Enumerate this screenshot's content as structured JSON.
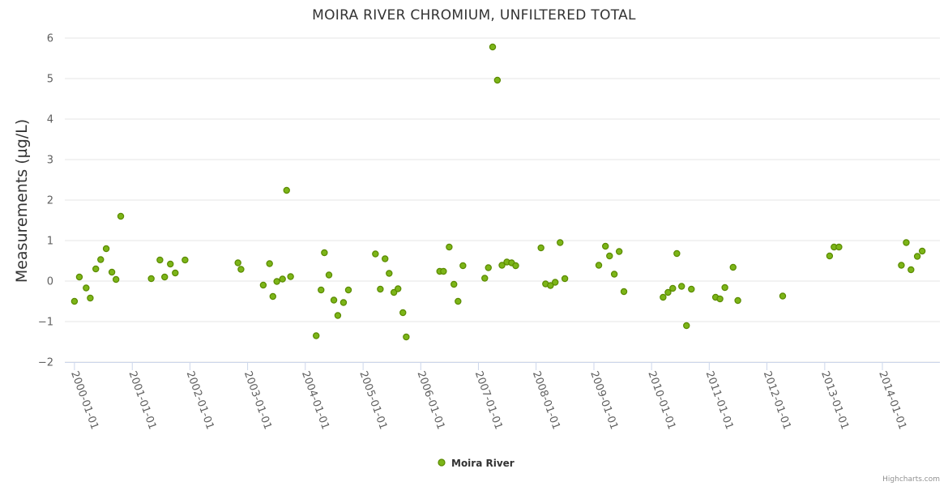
{
  "chart_data": {
    "type": "scatter",
    "title": "MOIRA RIVER CHROMIUM, UNFILTERED TOTAL",
    "ylabel": "Measurements (µg/L)",
    "xlabel": "",
    "ylim": [
      -2,
      6
    ],
    "xlim": [
      "1999-11-01",
      "2014-12-31"
    ],
    "yticks": [
      "−2",
      "−1",
      "0",
      "1",
      "2",
      "3",
      "4",
      "5",
      "6"
    ],
    "ytick_values": [
      -2,
      -1,
      0,
      1,
      2,
      3,
      4,
      5,
      6
    ],
    "xticks": [
      "2000-01-01",
      "2001-01-01",
      "2002-01-01",
      "2003-01-01",
      "2004-01-01",
      "2005-01-01",
      "2006-01-01",
      "2007-01-01",
      "2008-01-01",
      "2009-01-01",
      "2010-01-01",
      "2011-01-01",
      "2012-01-01",
      "2013-01-01",
      "2014-01-01"
    ],
    "grid": true,
    "legend_position": "bottom-center",
    "marker_fill": "#7cb518",
    "marker_stroke": "#5a8a00",
    "credits": "Highcharts.com",
    "series": [
      {
        "name": "Moira River",
        "points": [
          [
            "2000-01-01",
            -0.5
          ],
          [
            "2000-02-01",
            0.1
          ],
          [
            "2000-03-15",
            -0.17
          ],
          [
            "2000-04-10",
            -0.42
          ],
          [
            "2000-05-15",
            0.3
          ],
          [
            "2000-06-15",
            0.53
          ],
          [
            "2000-07-20",
            0.8
          ],
          [
            "2000-08-25",
            0.22
          ],
          [
            "2000-09-20",
            0.04
          ],
          [
            "2000-10-20",
            1.6
          ],
          [
            "2001-05-01",
            0.06
          ],
          [
            "2001-06-25",
            0.52
          ],
          [
            "2001-07-25",
            0.1
          ],
          [
            "2001-08-30",
            0.42
          ],
          [
            "2001-09-30",
            0.2
          ],
          [
            "2001-12-01",
            0.52
          ],
          [
            "2002-11-01",
            0.45
          ],
          [
            "2002-11-20",
            0.29
          ],
          [
            "2003-04-10",
            -0.1
          ],
          [
            "2003-05-20",
            0.43
          ],
          [
            "2003-06-10",
            -0.38
          ],
          [
            "2003-07-05",
            -0.01
          ],
          [
            "2003-08-10",
            0.05
          ],
          [
            "2003-09-05",
            2.24
          ],
          [
            "2003-09-30",
            0.11
          ],
          [
            "2004-03-10",
            -1.35
          ],
          [
            "2004-04-10",
            -0.22
          ],
          [
            "2004-05-01",
            0.7
          ],
          [
            "2004-05-30",
            0.15
          ],
          [
            "2004-06-30",
            -0.47
          ],
          [
            "2004-07-25",
            -0.85
          ],
          [
            "2004-08-30",
            -0.53
          ],
          [
            "2004-09-30",
            -0.22
          ],
          [
            "2005-03-20",
            0.67
          ],
          [
            "2005-04-20",
            -0.2
          ],
          [
            "2005-05-20",
            0.55
          ],
          [
            "2005-06-15",
            0.19
          ],
          [
            "2005-07-15",
            -0.28
          ],
          [
            "2005-08-10",
            -0.19
          ],
          [
            "2005-09-10",
            -0.78
          ],
          [
            "2005-10-01",
            -1.38
          ],
          [
            "2006-05-01",
            0.24
          ],
          [
            "2006-05-25",
            0.24
          ],
          [
            "2006-06-30",
            0.84
          ],
          [
            "2006-07-30",
            -0.08
          ],
          [
            "2006-08-25",
            -0.5
          ],
          [
            "2006-09-25",
            0.38
          ],
          [
            "2007-02-10",
            0.07
          ],
          [
            "2007-03-05",
            0.33
          ],
          [
            "2007-04-01",
            5.78
          ],
          [
            "2007-05-01",
            4.96
          ],
          [
            "2007-05-30",
            0.39
          ],
          [
            "2007-06-30",
            0.47
          ],
          [
            "2007-07-30",
            0.45
          ],
          [
            "2007-08-25",
            0.38
          ],
          [
            "2008-02-01",
            0.82
          ],
          [
            "2008-03-01",
            -0.07
          ],
          [
            "2008-04-01",
            -0.11
          ],
          [
            "2008-05-01",
            -0.03
          ],
          [
            "2008-06-01",
            0.95
          ],
          [
            "2008-07-01",
            0.06
          ],
          [
            "2009-02-01",
            0.39
          ],
          [
            "2009-03-15",
            0.86
          ],
          [
            "2009-04-10",
            0.62
          ],
          [
            "2009-05-10",
            0.17
          ],
          [
            "2009-06-10",
            0.73
          ],
          [
            "2009-07-10",
            -0.26
          ],
          [
            "2010-03-15",
            -0.4
          ],
          [
            "2010-04-15",
            -0.28
          ],
          [
            "2010-05-15",
            -0.18
          ],
          [
            "2010-06-10",
            0.68
          ],
          [
            "2010-07-10",
            -0.13
          ],
          [
            "2010-08-10",
            -1.1
          ],
          [
            "2010-09-10",
            -0.2
          ],
          [
            "2011-02-10",
            -0.4
          ],
          [
            "2011-03-10",
            -0.44
          ],
          [
            "2011-04-10",
            -0.16
          ],
          [
            "2011-06-01",
            0.34
          ],
          [
            "2011-07-01",
            -0.48
          ],
          [
            "2012-04-10",
            -0.37
          ],
          [
            "2013-02-01",
            0.62
          ],
          [
            "2013-03-01",
            0.84
          ],
          [
            "2013-04-01",
            0.84
          ],
          [
            "2014-05-01",
            0.39
          ],
          [
            "2014-06-01",
            0.95
          ],
          [
            "2014-07-01",
            0.28
          ],
          [
            "2014-08-10",
            0.61
          ],
          [
            "2014-09-10",
            0.74
          ]
        ]
      }
    ]
  }
}
